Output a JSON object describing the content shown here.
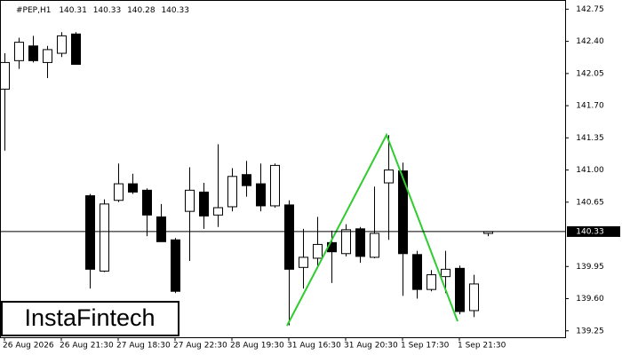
{
  "chart_data": {
    "type": "candlestick",
    "symbol": "#PEP,H1",
    "categories": [
      "26 Aug 2026",
      null,
      null,
      null,
      "26 Aug 21:30",
      null,
      null,
      null,
      "27 Aug 18:30",
      null,
      null,
      null,
      "27 Aug 22:30",
      null,
      null,
      null,
      "28 Aug 19:30",
      null,
      null,
      null,
      "31 Aug 16:30",
      null,
      null,
      null,
      "31 Aug 20:30",
      null,
      null,
      null,
      "1 Sep 17:30",
      null,
      null,
      null,
      "1 Sep 21:30",
      null,
      null
    ],
    "open": [
      141.88,
      142.19,
      142.35,
      142.17,
      142.27,
      142.48,
      140.72,
      139.9,
      140.67,
      140.85,
      140.78,
      140.49,
      140.24,
      140.55,
      140.76,
      140.51,
      140.6,
      140.95,
      140.85,
      140.61,
      140.62,
      139.94,
      140.04,
      140.21,
      140.09,
      140.36,
      140.05,
      140.86,
      140.99,
      140.08,
      139.7,
      139.84,
      139.93,
      139.47,
      140.31
    ],
    "high": [
      142.27,
      142.44,
      142.46,
      142.35,
      142.5,
      142.5,
      140.74,
      140.68,
      141.07,
      140.96,
      140.8,
      140.63,
      140.26,
      141.03,
      140.86,
      141.28,
      141.02,
      141.1,
      141.07,
      141.07,
      140.67,
      140.36,
      140.49,
      140.34,
      140.41,
      140.38,
      140.82,
      141.38,
      141.08,
      140.12,
      139.91,
      140.12,
      139.96,
      139.86,
      140.33
    ],
    "low": [
      141.21,
      142.1,
      142.17,
      142.0,
      142.23,
      142.15,
      139.71,
      139.89,
      140.65,
      140.74,
      140.28,
      140.22,
      139.66,
      140.01,
      140.36,
      140.38,
      140.55,
      140.71,
      140.55,
      140.59,
      139.31,
      139.71,
      139.93,
      139.77,
      140.06,
      139.99,
      140.04,
      140.24,
      139.63,
      139.6,
      139.68,
      139.66,
      139.43,
      139.4,
      140.28
    ],
    "close": [
      142.17,
      142.39,
      142.19,
      142.31,
      142.46,
      142.15,
      139.92,
      140.63,
      140.85,
      140.76,
      140.51,
      140.22,
      139.68,
      140.78,
      140.5,
      140.59,
      140.93,
      140.83,
      140.61,
      141.05,
      139.92,
      140.05,
      140.19,
      140.11,
      140.35,
      140.06,
      140.31,
      141.0,
      140.09,
      139.7,
      139.86,
      139.92,
      139.46,
      139.76,
      140.33
    ],
    "up_color": "#ffffff",
    "down_color": "#000000",
    "last_price": 140.33,
    "ylim": [
      139.18,
      142.85
    ],
    "yticks": [
      142.75,
      {
        "value": 142.4,
        "label": "142.40"
      },
      142.05,
      {
        "value": 141.7,
        "label": "141.70"
      },
      141.35,
      {
        "value": 141.0,
        "label": "141.00"
      },
      140.65,
      139.95,
      {
        "value": 139.6,
        "label": "139.60"
      },
      139.25
    ]
  },
  "logo": "InstaFintech"
}
